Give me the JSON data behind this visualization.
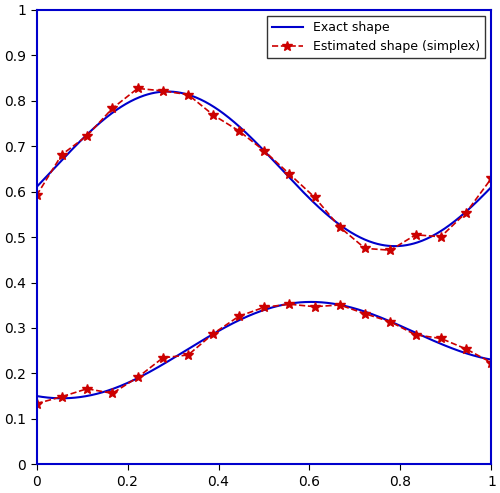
{
  "xlim": [
    0,
    1
  ],
  "ylim": [
    0,
    1
  ],
  "exact_color": "#0000CC",
  "estimated_color": "#CC0000",
  "exact_linewidth": 1.5,
  "estimated_linewidth": 1.2,
  "marker": "*",
  "markersize": 7,
  "legend_loc": "upper right",
  "legend_labels": [
    "Exact shape",
    "Estimated shape (simplex)"
  ],
  "n_exact": 500,
  "n_estimated": 19,
  "background_color": "#ffffff",
  "border_color": "#0000CC",
  "upper_mean": 0.615,
  "upper_amp": 0.165,
  "upper_freq_mult": 1.0,
  "upper_phase": -1.0,
  "lower_mean": 0.225,
  "lower_amp": 0.08,
  "lower_freq_mult": 1.0,
  "lower_phase": -1.0,
  "est_noise_scale": 0.022
}
